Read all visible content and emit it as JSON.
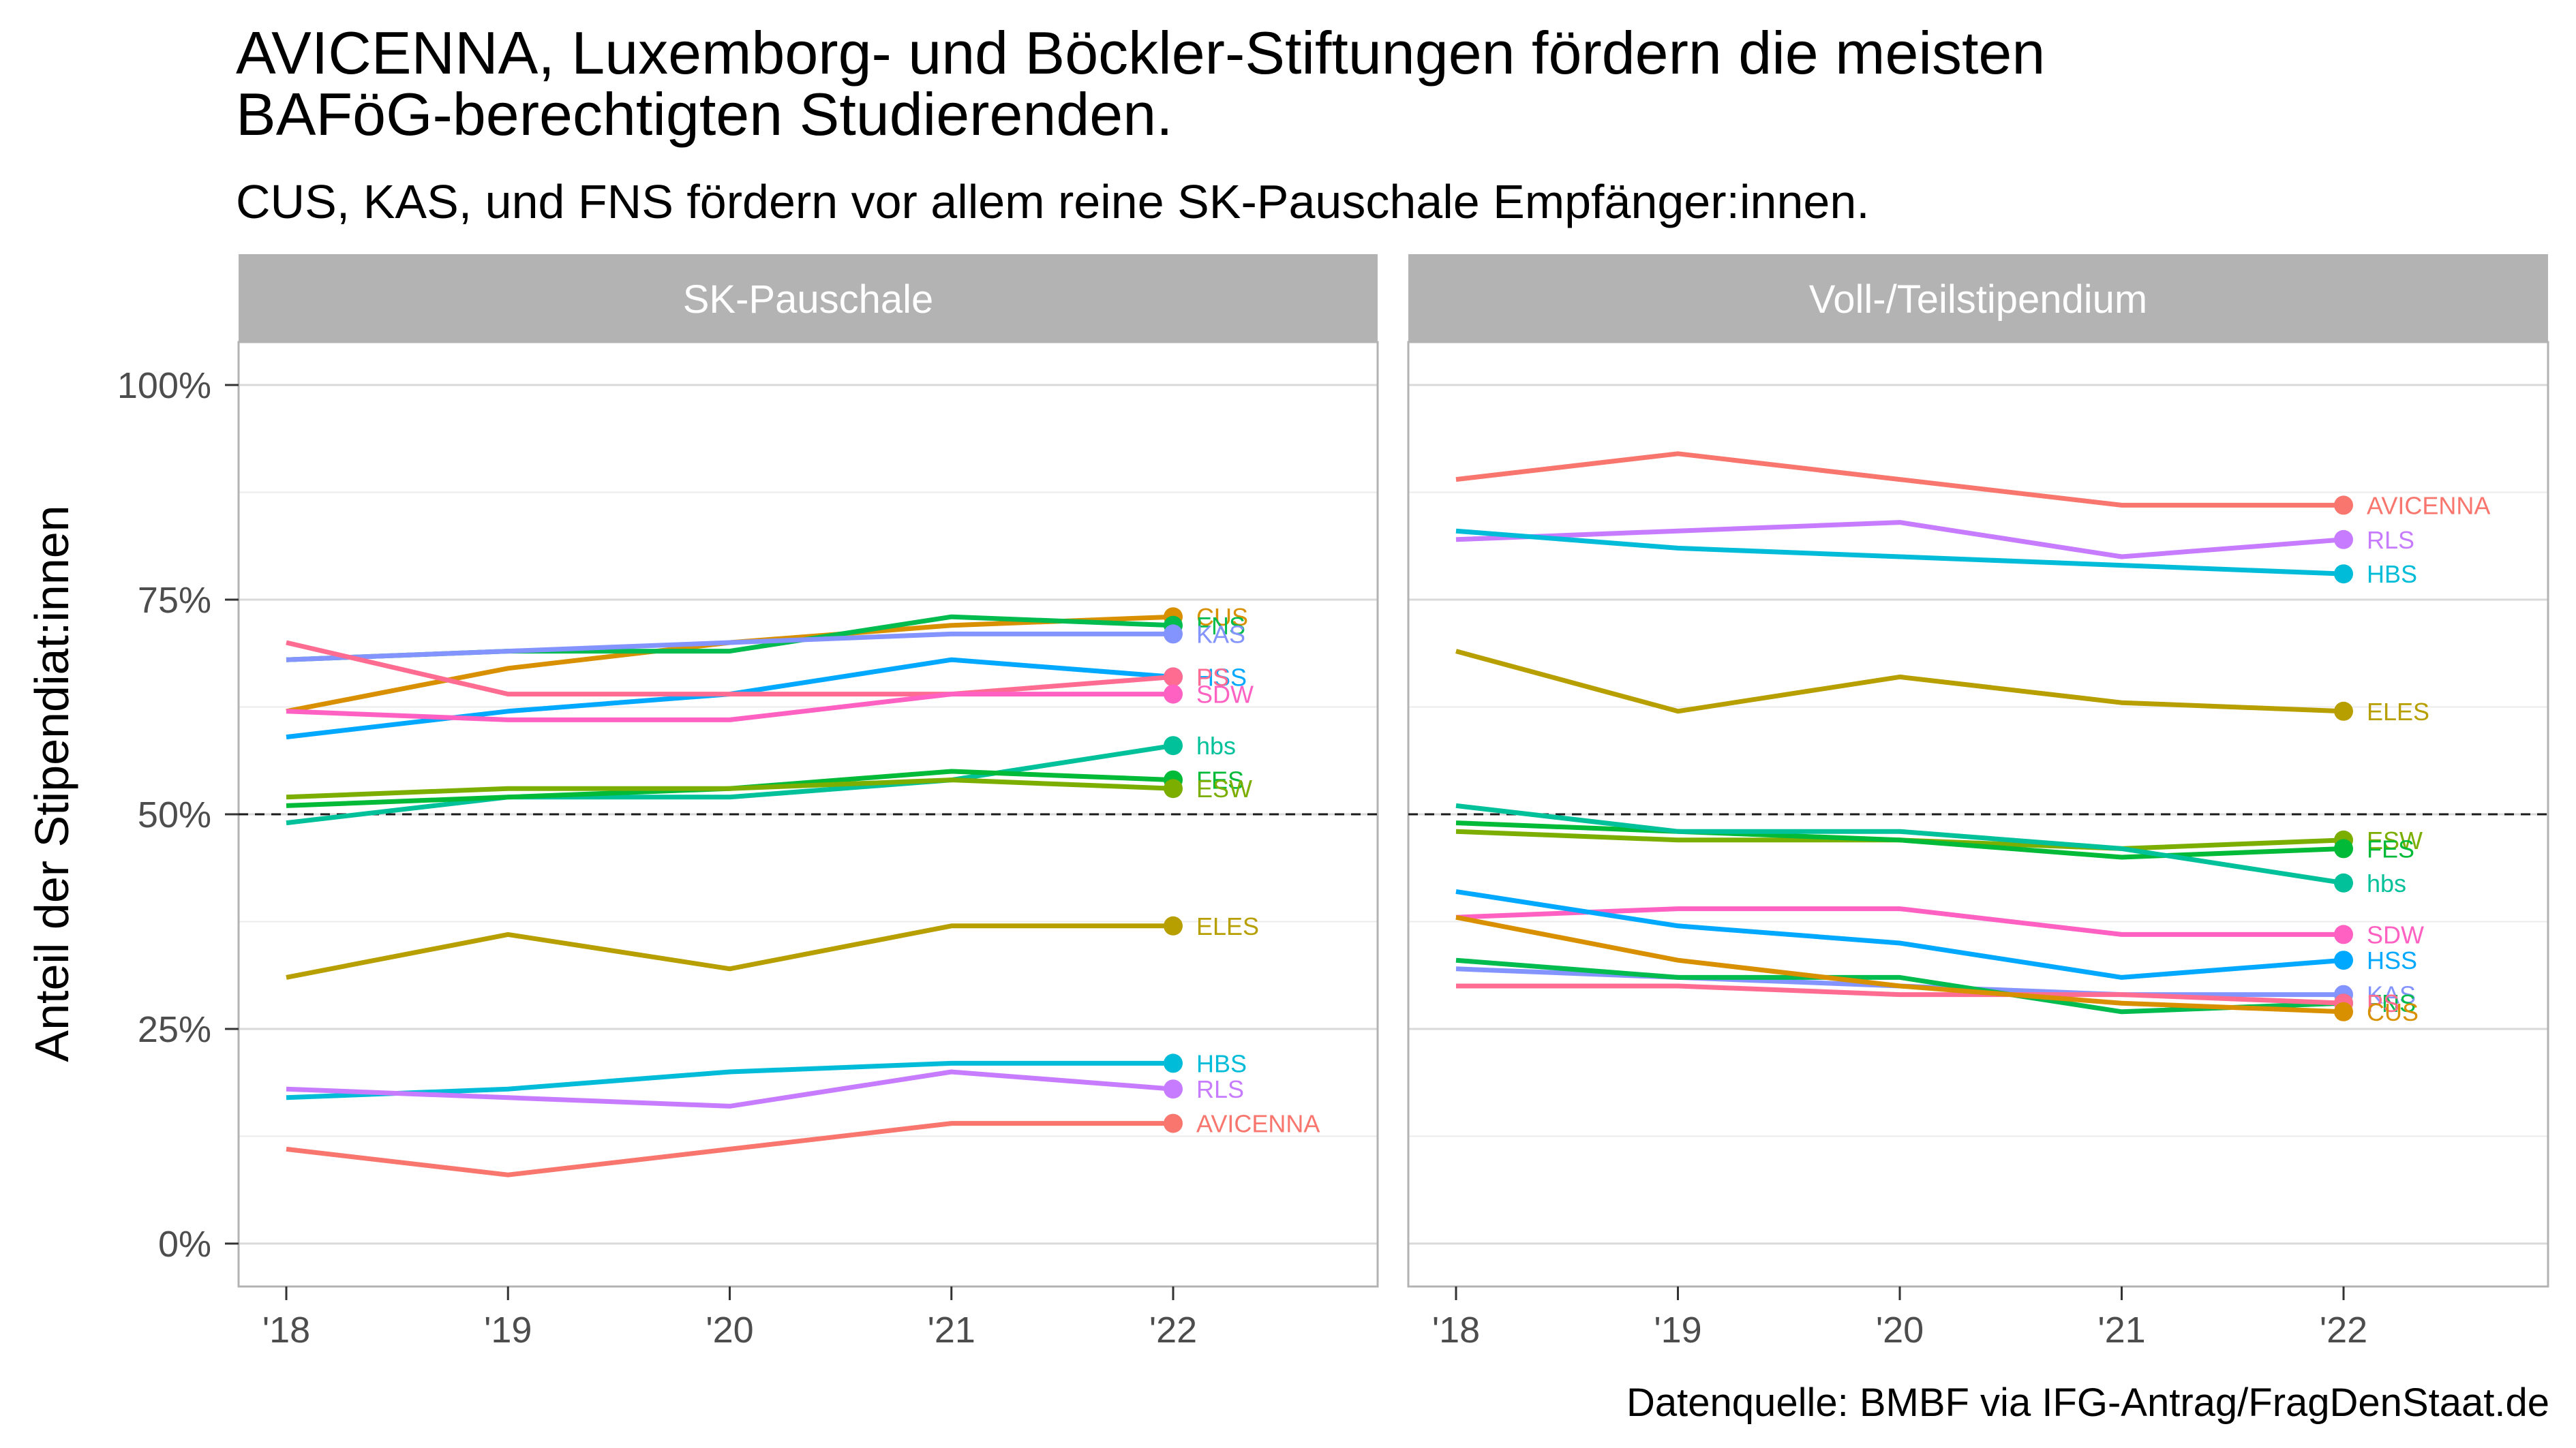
{
  "title_line1": "AVICENNA, Luxemborg- und Böckler-Stiftungen fördern die meisten",
  "title_line2": "BAFöG-berechtigten Studierenden.",
  "subtitle": "CUS, KAS, und FNS fördern vor allem reine SK-Pauschale Empfänger:innen.",
  "caption": "Datenquelle: BMBF via IFG-Antrag/FragDenStaat.de",
  "chart_data": {
    "type": "line",
    "ylabel": "Anteil der Stipendiat:innen",
    "xlabel": "",
    "x_ticks": [
      "'18",
      "'19",
      "'20",
      "'21",
      "'22"
    ],
    "y_ticks": [
      "0%",
      "25%",
      "50%",
      "75%",
      "100%"
    ],
    "ylim": [
      -0.05,
      1.05
    ],
    "reference_line": 0.5,
    "grid": true,
    "legend": "none (direct end labels)",
    "colors": {
      "AVICENNA": "#F8766D",
      "CUS": "#D89000",
      "ELES": "#A3A500",
      "ESW": "#72B000",
      "FES": "#00B81F",
      "FNS": "#00C08B",
      "hbs": "#00BFC4",
      "HBS": "#00B4EF",
      "HSS": "#00A5FF",
      "KAS": "#7F96FF",
      "RLS": "#BC81FF",
      "SDW": "#FF61C3",
      "SDW2": "#FF6C91"
    },
    "panels": [
      {
        "name": "SK-Pauschale",
        "series": [
          {
            "name": "CUS",
            "color": "#D89000",
            "values": [
              0.62,
              0.67,
              0.7,
              0.72,
              0.73
            ]
          },
          {
            "name": "FNS",
            "color": "#00BB4E",
            "values": [
              0.68,
              0.69,
              0.69,
              0.73,
              0.72
            ]
          },
          {
            "name": "KAS",
            "color": "#8494FF",
            "values": [
              0.68,
              0.69,
              0.7,
              0.71,
              0.71
            ]
          },
          {
            "name": "HSS",
            "color": "#00A9FF",
            "values": [
              0.59,
              0.62,
              0.64,
              0.68,
              0.66
            ]
          },
          {
            "name": "PS",
            "color": "#FF6C91",
            "values": [
              0.7,
              0.64,
              0.64,
              0.64,
              0.66
            ]
          },
          {
            "name": "SDW",
            "color": "#FF61C3",
            "values": [
              0.62,
              0.61,
              0.61,
              0.64,
              0.64
            ]
          },
          {
            "name": "hbs",
            "color": "#00C19A",
            "values": [
              0.49,
              0.52,
              0.52,
              0.54,
              0.58
            ]
          },
          {
            "name": "FES",
            "color": "#00BA38",
            "values": [
              0.51,
              0.52,
              0.53,
              0.55,
              0.54
            ]
          },
          {
            "name": "ESW",
            "color": "#7CAE00",
            "values": [
              0.52,
              0.53,
              0.53,
              0.54,
              0.53
            ]
          },
          {
            "name": "ELES",
            "color": "#B79F00",
            "values": [
              0.31,
              0.36,
              0.32,
              0.37,
              0.37
            ]
          },
          {
            "name": "HBS",
            "color": "#00BCD8",
            "values": [
              0.17,
              0.18,
              0.2,
              0.21,
              0.21
            ]
          },
          {
            "name": "RLS",
            "color": "#C77CFF",
            "values": [
              0.18,
              0.17,
              0.16,
              0.2,
              0.18
            ]
          },
          {
            "name": "AVICENNA",
            "color": "#F8766D",
            "values": [
              0.11,
              0.08,
              0.11,
              0.14,
              0.14
            ]
          }
        ]
      },
      {
        "name": "Voll-/Teilstipendium",
        "series": [
          {
            "name": "AVICENNA",
            "color": "#F8766D",
            "values": [
              0.89,
              0.92,
              0.89,
              0.86,
              0.86
            ]
          },
          {
            "name": "RLS",
            "color": "#C77CFF",
            "values": [
              0.82,
              0.83,
              0.84,
              0.8,
              0.82
            ]
          },
          {
            "name": "HBS",
            "color": "#00BCD8",
            "values": [
              0.83,
              0.81,
              0.8,
              0.79,
              0.78
            ]
          },
          {
            "name": "ELES",
            "color": "#B79F00",
            "values": [
              0.69,
              0.62,
              0.66,
              0.63,
              0.62
            ]
          },
          {
            "name": "ESW",
            "color": "#7CAE00",
            "values": [
              0.48,
              0.47,
              0.47,
              0.46,
              0.47
            ]
          },
          {
            "name": "FES",
            "color": "#00BA38",
            "values": [
              0.49,
              0.48,
              0.47,
              0.45,
              0.46
            ]
          },
          {
            "name": "hbs",
            "color": "#00C19A",
            "values": [
              0.51,
              0.48,
              0.48,
              0.46,
              0.42
            ]
          },
          {
            "name": "SDW",
            "color": "#FF61C3",
            "values": [
              0.38,
              0.39,
              0.39,
              0.36,
              0.36
            ]
          },
          {
            "name": "HSS",
            "color": "#00A9FF",
            "values": [
              0.41,
              0.37,
              0.35,
              0.31,
              0.33
            ]
          },
          {
            "name": "KAS",
            "color": "#8494FF",
            "values": [
              0.32,
              0.31,
              0.3,
              0.29,
              0.29
            ]
          },
          {
            "name": "FNS",
            "color": "#00BB4E",
            "values": [
              0.33,
              0.31,
              0.31,
              0.27,
              0.28
            ]
          },
          {
            "name": "PS",
            "color": "#FF6C91",
            "values": [
              0.3,
              0.3,
              0.29,
              0.29,
              0.28
            ]
          },
          {
            "name": "CUS",
            "color": "#D89000",
            "values": [
              0.38,
              0.33,
              0.3,
              0.28,
              0.27
            ]
          }
        ]
      }
    ]
  }
}
